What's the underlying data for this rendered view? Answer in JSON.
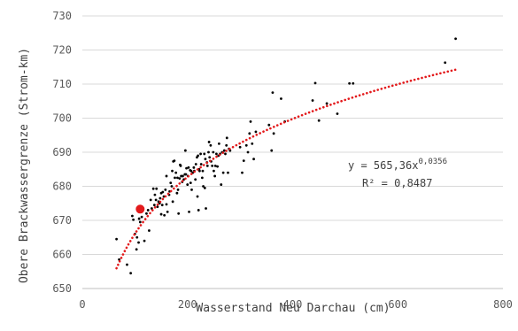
{
  "chart_data": {
    "type": "scatter",
    "xlabel": "Wasserstand Neu Darchau (cm)",
    "ylabel": "Obere Brackwassergrenze (Strom-km)",
    "xlim": [
      0,
      800
    ],
    "ylim": [
      650,
      730
    ],
    "x_ticks": [
      "0",
      "200",
      "400",
      "600",
      "800"
    ],
    "y_ticks": [
      "650",
      "660",
      "670",
      "680",
      "690",
      "700",
      "710",
      "720",
      "730"
    ],
    "grid": "horizontal",
    "colors": {
      "points": "#000000",
      "highlight": "#e31a1c",
      "trend": "#e31a1c"
    },
    "trendline": {
      "type": "power",
      "a": 565.36,
      "b": 0.0356,
      "x_range": [
        65,
        710
      ],
      "equation_label": "y = 565,36x",
      "equation_exponent": "0,0356",
      "r2_label": "R² = 0,8487"
    },
    "highlight_point": {
      "x": 110,
      "y": 673.3
    },
    "series": [
      {
        "points": [
          [
            65,
            664.5
          ],
          [
            70,
            658.5
          ],
          [
            85,
            657
          ],
          [
            92,
            654.5
          ],
          [
            95,
            671.3
          ],
          [
            97,
            670.2
          ],
          [
            100,
            666
          ],
          [
            103,
            661.5
          ],
          [
            104,
            665
          ],
          [
            107,
            663.5
          ],
          [
            108,
            670.5
          ],
          [
            110,
            669.5
          ],
          [
            113,
            671
          ],
          [
            118,
            664
          ],
          [
            122,
            672
          ],
          [
            125,
            673
          ],
          [
            127,
            667
          ],
          [
            130,
            676
          ],
          [
            132,
            673.5
          ],
          [
            135,
            679.3
          ],
          [
            137,
            674.5
          ],
          [
            138,
            677.5
          ],
          [
            140,
            676
          ],
          [
            141,
            679.3
          ],
          [
            143,
            674
          ],
          [
            145,
            675.5
          ],
          [
            147,
            675
          ],
          [
            148,
            676.5
          ],
          [
            150,
            671.8
          ],
          [
            150,
            678
          ],
          [
            152,
            674.5
          ],
          [
            153,
            678.3
          ],
          [
            155,
            677
          ],
          [
            156,
            671.5
          ],
          [
            158,
            679
          ],
          [
            160,
            674.7
          ],
          [
            160,
            683
          ],
          [
            162,
            672.5
          ],
          [
            165,
            677.5
          ],
          [
            166,
            678.5
          ],
          [
            168,
            681
          ],
          [
            170,
            680
          ],
          [
            171,
            684.5
          ],
          [
            172,
            675.5
          ],
          [
            173,
            687.3
          ],
          [
            175,
            687.5
          ],
          [
            176,
            682.5
          ],
          [
            178,
            684
          ],
          [
            180,
            678
          ],
          [
            181,
            682.5
          ],
          [
            182,
            679
          ],
          [
            183,
            672
          ],
          [
            185,
            682.3
          ],
          [
            186,
            686.3
          ],
          [
            187,
            686
          ],
          [
            188,
            683
          ],
          [
            190,
            681.3
          ],
          [
            191,
            683
          ],
          [
            193,
            682
          ],
          [
            195,
            683.5
          ],
          [
            196,
            690.5
          ],
          [
            197,
            683.5
          ],
          [
            198,
            685.3
          ],
          [
            200,
            680.5
          ],
          [
            201,
            683
          ],
          [
            202,
            685.5
          ],
          [
            203,
            672.5
          ],
          [
            205,
            684.7
          ],
          [
            206,
            681
          ],
          [
            207,
            684.5
          ],
          [
            208,
            679
          ],
          [
            210,
            684
          ],
          [
            212,
            685.5
          ],
          [
            213,
            684.5
          ],
          [
            215,
            682
          ],
          [
            216,
            686.5
          ],
          [
            218,
            688.5
          ],
          [
            219,
            677
          ],
          [
            220,
            689
          ],
          [
            221,
            673
          ],
          [
            222,
            685
          ],
          [
            223,
            684.5
          ],
          [
            225,
            689.5
          ],
          [
            226,
            686.5
          ],
          [
            228,
            682.5
          ],
          [
            229,
            684.5
          ],
          [
            230,
            680
          ],
          [
            232,
            689.5
          ],
          [
            233,
            679.5
          ],
          [
            234,
            688
          ],
          [
            235,
            673.5
          ],
          [
            237,
            687
          ],
          [
            238,
            686
          ],
          [
            240,
            690
          ],
          [
            241,
            693
          ],
          [
            242,
            688.5
          ],
          [
            244,
            692
          ],
          [
            245,
            687.3
          ],
          [
            247,
            686
          ],
          [
            249,
            690
          ],
          [
            250,
            684.5
          ],
          [
            252,
            683
          ],
          [
            253,
            686
          ],
          [
            255,
            689.5
          ],
          [
            257,
            685.8
          ],
          [
            259,
            689
          ],
          [
            260,
            692.5
          ],
          [
            262,
            689.5
          ],
          [
            264,
            680.5
          ],
          [
            266,
            690
          ],
          [
            268,
            684
          ],
          [
            270,
            690.5
          ],
          [
            272,
            689.5
          ],
          [
            274,
            692
          ],
          [
            275,
            694.2
          ],
          [
            277,
            684
          ],
          [
            279,
            691
          ],
          [
            281,
            690.5
          ],
          [
            300,
            691.5
          ],
          [
            304,
            684
          ],
          [
            307,
            687.5
          ],
          [
            312,
            692
          ],
          [
            315,
            690
          ],
          [
            318,
            695.5
          ],
          [
            320,
            699
          ],
          [
            323,
            692.5
          ],
          [
            326,
            688
          ],
          [
            330,
            696
          ],
          [
            355,
            698
          ],
          [
            360,
            690.5
          ],
          [
            362,
            707.5
          ],
          [
            364,
            695.5
          ],
          [
            378,
            705.7
          ],
          [
            385,
            699
          ],
          [
            438,
            705.2
          ],
          [
            443,
            710.3
          ],
          [
            450,
            699.3
          ],
          [
            465,
            704.3
          ],
          [
            485,
            701.3
          ],
          [
            508,
            710.2
          ],
          [
            515,
            710.2
          ],
          [
            690,
            716.3
          ],
          [
            710,
            723.3
          ]
        ]
      }
    ]
  }
}
